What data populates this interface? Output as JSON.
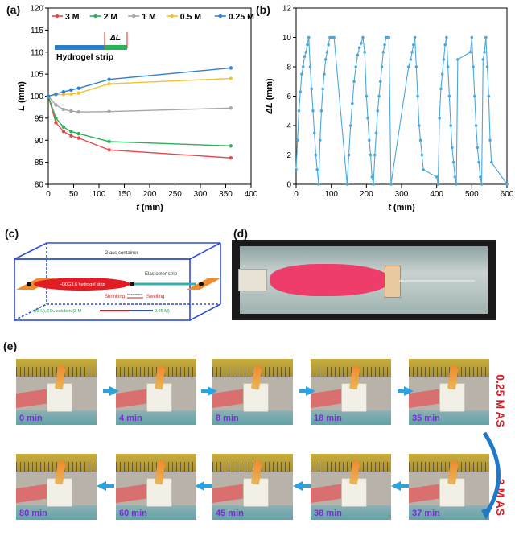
{
  "panels": {
    "a": "(a)",
    "b": "(b)",
    "c": "(c)",
    "d": "(d)",
    "e": "(e)"
  },
  "chart_data": [
    {
      "type": "line",
      "xlabel_var": "t",
      "xlabel_unit": "(min)",
      "ylabel_var": "L",
      "ylabel_unit": "(mm)",
      "xlim": [
        0,
        400
      ],
      "ylim": [
        80,
        120
      ],
      "xticks": [
        0,
        50,
        100,
        150,
        200,
        250,
        300,
        350,
        400
      ],
      "yticks": [
        80,
        85,
        90,
        95,
        100,
        105,
        110,
        115,
        120
      ],
      "legend": "top",
      "inset_label": "Hydrogel strip",
      "inset_delta": "ΔL",
      "series": [
        {
          "name": "3 M",
          "color": "#e8484a",
          "x": [
            0,
            15,
            30,
            45,
            60,
            120,
            360
          ],
          "y": [
            100,
            94,
            92,
            91,
            90.5,
            87.8,
            86
          ]
        },
        {
          "name": "2 M",
          "color": "#2bb05a",
          "x": [
            0,
            15,
            30,
            45,
            60,
            120,
            360
          ],
          "y": [
            100,
            95,
            93,
            92,
            91.5,
            89.7,
            88.7
          ]
        },
        {
          "name": "1 M",
          "color": "#a6a6a6",
          "x": [
            0,
            15,
            30,
            45,
            60,
            120,
            360
          ],
          "y": [
            100,
            98,
            97,
            96.6,
            96.4,
            96.5,
            97.3
          ]
        },
        {
          "name": "0.5 M",
          "color": "#f2c230",
          "x": [
            0,
            15,
            30,
            45,
            60,
            120,
            360
          ],
          "y": [
            100,
            100.3,
            100.4,
            100.5,
            100.7,
            102.8,
            104
          ]
        },
        {
          "name": "0.25 M",
          "color": "#2f7fd0",
          "x": [
            0,
            15,
            30,
            45,
            60,
            120,
            360
          ],
          "y": [
            100,
            100.5,
            101,
            101.4,
            101.8,
            103.8,
            106.4
          ]
        }
      ]
    },
    {
      "type": "line",
      "xlabel_var": "t",
      "xlabel_unit": "(min)",
      "ylabel_var": "ΔL",
      "ylabel_unit": "(mm)",
      "xlim": [
        0,
        600
      ],
      "ylim": [
        0,
        12
      ],
      "xticks": [
        0,
        100,
        200,
        300,
        400,
        500,
        600
      ],
      "yticks": [
        0,
        2,
        4,
        6,
        8,
        10,
        12
      ],
      "series": [
        {
          "name": "",
          "color": "#4aa8df",
          "x": [
            0,
            4,
            8,
            12,
            16,
            20,
            24,
            28,
            32,
            36,
            40,
            44,
            48,
            52,
            56,
            60,
            64,
            68,
            72,
            76,
            80,
            84,
            88,
            92,
            96,
            100,
            104,
            108,
            145,
            150,
            155,
            160,
            165,
            170,
            175,
            180,
            185,
            190,
            195,
            200,
            204,
            208,
            212,
            216,
            220,
            224,
            228,
            232,
            236,
            240,
            244,
            248,
            252,
            256,
            260,
            264,
            270,
            320,
            326,
            330,
            334,
            338,
            342,
            346,
            350,
            354,
            358,
            362,
            400,
            404,
            408,
            412,
            416,
            420,
            424,
            428,
            432,
            436,
            440,
            444,
            448,
            452,
            456,
            460,
            496,
            500,
            504,
            508,
            512,
            516,
            520,
            524,
            528,
            532,
            536,
            540,
            544,
            548,
            552,
            556,
            600
          ],
          "y": [
            1,
            3,
            5,
            6.3,
            7.5,
            8,
            8.7,
            9,
            9.5,
            10,
            8,
            6.5,
            5,
            3.5,
            2,
            1,
            0,
            3,
            5,
            6.5,
            7.5,
            8.5,
            9,
            9.5,
            10,
            10,
            10,
            10,
            0,
            2,
            4,
            5.5,
            7,
            8,
            8.8,
            9.3,
            9.6,
            10,
            9,
            6,
            4.5,
            3,
            2,
            0.5,
            0,
            2,
            3.5,
            5,
            6,
            7,
            8,
            9,
            9.5,
            10,
            10,
            10,
            0,
            8,
            8.5,
            9,
            9.5,
            10,
            8,
            6,
            4,
            3,
            2,
            1,
            0.5,
            0,
            4.5,
            6.5,
            7.5,
            8.5,
            9.5,
            10,
            8,
            6,
            4,
            2.5,
            1.5,
            0.5,
            0,
            8.5,
            9,
            10,
            8,
            6,
            4,
            2.5,
            1.5,
            0.5,
            0,
            8.5,
            9,
            10,
            8,
            6,
            3,
            1.5,
            0
          ]
        }
      ]
    }
  ],
  "panel_c": {
    "container_label": "Glass container",
    "elastomer_label": "Elastomer strip",
    "hydrogel_label": "H30G3.6 hydrogel strip",
    "shrinking_label": "Shrinking",
    "movement_label": "movement",
    "swelling_label": "Swelling",
    "solution_label": "(NH₄)₂SO₄ solution (3 M",
    "solution_end": "0.25 M)"
  },
  "panel_e": {
    "side_top": "0.25 M AS",
    "side_bottom": "3 M AS",
    "row1": [
      "0 min",
      "4 min",
      "8 min",
      "18 min",
      "35 min"
    ],
    "row2": [
      "80 min",
      "60 min",
      "45 min",
      "38 min",
      "37 min"
    ]
  }
}
